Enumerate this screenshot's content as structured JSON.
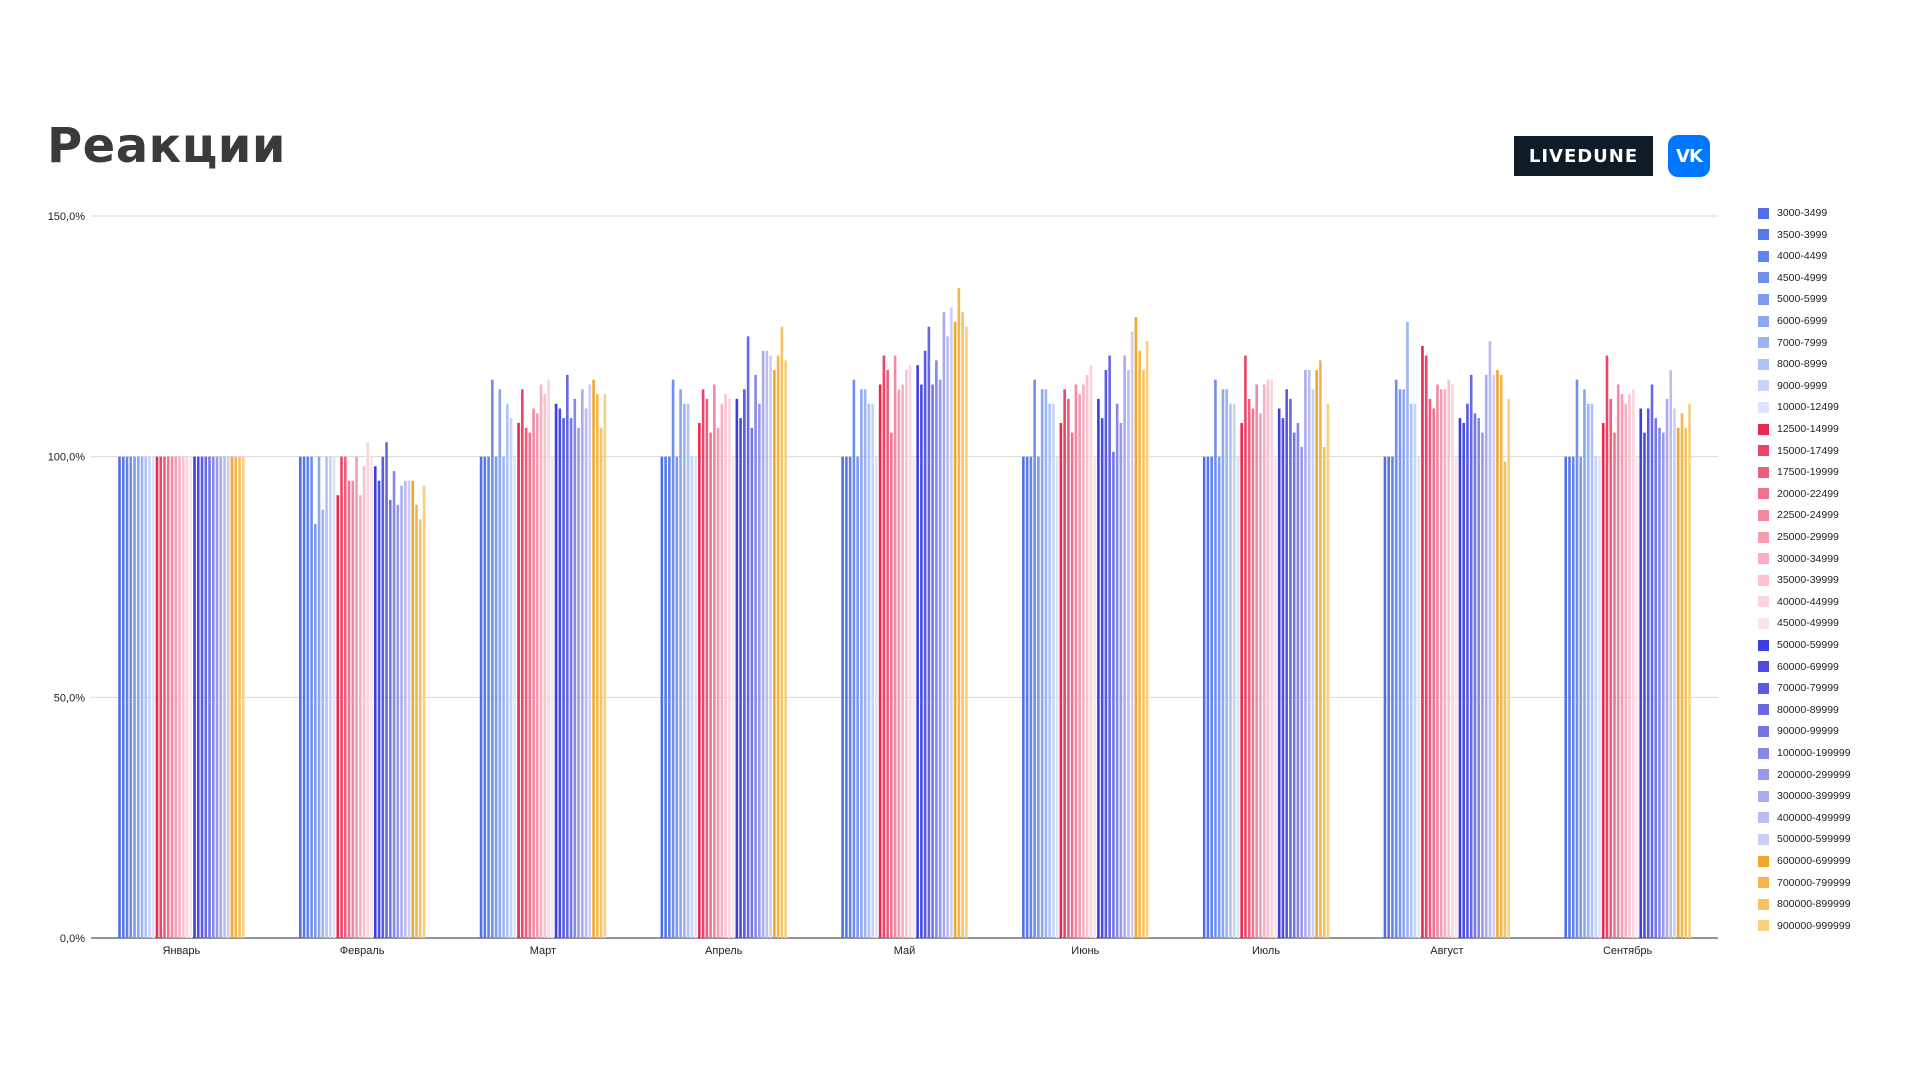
{
  "header": {
    "title": "Реакции",
    "brand_label": "LIVEDUNE",
    "vk_icon": "vk-logo-icon",
    "vk_color": "#0077ff"
  },
  "chart_data": {
    "type": "bar",
    "title": "Реакции",
    "xlabel": "",
    "ylabel": "",
    "ylim": [
      0,
      150
    ],
    "y_ticks": [
      "0,0%",
      "50,0%",
      "100,0%",
      "150,0%"
    ],
    "grid": true,
    "legend_position": "right",
    "categories": [
      "Январь",
      "Февраль",
      "Март",
      "Апрель",
      "Май",
      "Июнь",
      "Июль",
      "Август",
      "Сентябрь"
    ],
    "series": [
      {
        "name": "3000-3499",
        "color": "#4f6fe8",
        "values": [
          100,
          100,
          100,
          100,
          100,
          100,
          100,
          100,
          100
        ]
      },
      {
        "name": "3500-3999",
        "color": "#5878ea",
        "values": [
          100,
          100,
          100,
          100,
          100,
          100,
          100,
          100,
          100
        ]
      },
      {
        "name": "4000-4499",
        "color": "#6282ec",
        "values": [
          100,
          100,
          100,
          100,
          100,
          100,
          100,
          100,
          100
        ]
      },
      {
        "name": "4500-4999",
        "color": "#6f8eee",
        "values": [
          100,
          100,
          116,
          116,
          116,
          116,
          116,
          116,
          116
        ]
      },
      {
        "name": "5000-5999",
        "color": "#7d9af0",
        "values": [
          100,
          86,
          100,
          100,
          100,
          100,
          100,
          114,
          100
        ]
      },
      {
        "name": "6000-6999",
        "color": "#8ca6f2",
        "values": [
          100,
          100,
          114,
          114,
          114,
          114,
          114,
          114,
          114
        ]
      },
      {
        "name": "7000-7999",
        "color": "#9db4f4",
        "values": [
          100,
          89,
          100,
          111,
          114,
          114,
          114,
          128,
          111
        ]
      },
      {
        "name": "8000-8999",
        "color": "#b0c3f6",
        "values": [
          100,
          100,
          111,
          111,
          111,
          111,
          111,
          111,
          111
        ]
      },
      {
        "name": "9000-9999",
        "color": "#c6d4f8",
        "values": [
          100,
          100,
          108,
          100,
          111,
          111,
          111,
          111,
          100
        ]
      },
      {
        "name": "10000-12499",
        "color": "#dde5fb",
        "values": [
          100,
          100,
          100,
          100,
          100,
          100,
          100,
          100,
          100
        ]
      },
      {
        "name": "12500-14999",
        "color": "#e8294d",
        "values": [
          100,
          92,
          107,
          107,
          115,
          107,
          107,
          123,
          107
        ]
      },
      {
        "name": "15000-17499",
        "color": "#ec4468",
        "values": [
          100,
          100,
          114,
          114,
          121,
          114,
          121,
          121,
          121
        ]
      },
      {
        "name": "17500-19999",
        "color": "#ef5c7c",
        "values": [
          100,
          100,
          106,
          112,
          118,
          112,
          112,
          112,
          112
        ]
      },
      {
        "name": "20000-22499",
        "color": "#f07490",
        "values": [
          100,
          95,
          105,
          105,
          105,
          105,
          110,
          110,
          105
        ]
      },
      {
        "name": "22500-24999",
        "color": "#f289a2",
        "values": [
          100,
          95,
          110,
          115,
          121,
          115,
          115,
          115,
          115
        ]
      },
      {
        "name": "25000-29999",
        "color": "#f49db2",
        "values": [
          100,
          100,
          109,
          106,
          114,
          113,
          109,
          114,
          113
        ]
      },
      {
        "name": "30000-34999",
        "color": "#f6b0c0",
        "values": [
          100,
          92,
          115,
          111,
          115,
          115,
          115,
          114,
          111
        ]
      },
      {
        "name": "35000-39999",
        "color": "#f8c3cf",
        "values": [
          100,
          98,
          113,
          113,
          118,
          117,
          116,
          116,
          113
        ]
      },
      {
        "name": "40000-44999",
        "color": "#fad5de",
        "values": [
          100,
          103,
          116,
          112,
          119,
          119,
          116,
          115,
          114
        ]
      },
      {
        "name": "45000-49999",
        "color": "#fce6ec",
        "values": [
          100,
          100,
          100,
          100,
          100,
          100,
          100,
          100,
          100
        ]
      },
      {
        "name": "50000-59999",
        "color": "#3c3ee0",
        "values": [
          100,
          98,
          111,
          112,
          119,
          112,
          110,
          108,
          110
        ]
      },
      {
        "name": "60000-69999",
        "color": "#4a4ce2",
        "values": [
          100,
          95,
          110,
          108,
          115,
          108,
          108,
          107,
          105
        ]
      },
      {
        "name": "70000-79999",
        "color": "#585ae4",
        "values": [
          100,
          100,
          108,
          114,
          122,
          118,
          114,
          111,
          110
        ]
      },
      {
        "name": "80000-89999",
        "color": "#6668e6",
        "values": [
          100,
          103,
          117,
          125,
          127,
          121,
          112,
          117,
          115
        ]
      },
      {
        "name": "90000-99999",
        "color": "#7476e8",
        "values": [
          100,
          91,
          108,
          106,
          115,
          101,
          105,
          109,
          108
        ]
      },
      {
        "name": "100000-199999",
        "color": "#8688ea",
        "values": [
          100,
          97,
          112,
          117,
          120,
          111,
          107,
          108,
          106
        ]
      },
      {
        "name": "200000-299999",
        "color": "#9799ec",
        "values": [
          100,
          90,
          106,
          111,
          116,
          107,
          102,
          105,
          105
        ]
      },
      {
        "name": "300000-399999",
        "color": "#a9abee",
        "values": [
          100,
          94,
          114,
          122,
          130,
          121,
          118,
          117,
          112
        ]
      },
      {
        "name": "400000-499999",
        "color": "#bbbcf0",
        "values": [
          100,
          95,
          110,
          122,
          125,
          118,
          118,
          124,
          118
        ]
      },
      {
        "name": "500000-599999",
        "color": "#cdcef3",
        "values": [
          100,
          95,
          115,
          121,
          131,
          126,
          114,
          117,
          110
        ]
      },
      {
        "name": "600000-699999",
        "color": "#f3a62e",
        "values": [
          100,
          95,
          116,
          118,
          128,
          129,
          118,
          118,
          106
        ]
      },
      {
        "name": "700000-799999",
        "color": "#f5b548",
        "values": [
          100,
          90,
          113,
          121,
          135,
          122,
          120,
          117,
          109
        ]
      },
      {
        "name": "800000-899999",
        "color": "#f7c263",
        "values": [
          100,
          87,
          106,
          127,
          130,
          118,
          102,
          99,
          106
        ]
      },
      {
        "name": "900000-999999",
        "color": "#f9cf80",
        "values": [
          100,
          94,
          113,
          120,
          127,
          124,
          111,
          112,
          111
        ]
      }
    ]
  }
}
